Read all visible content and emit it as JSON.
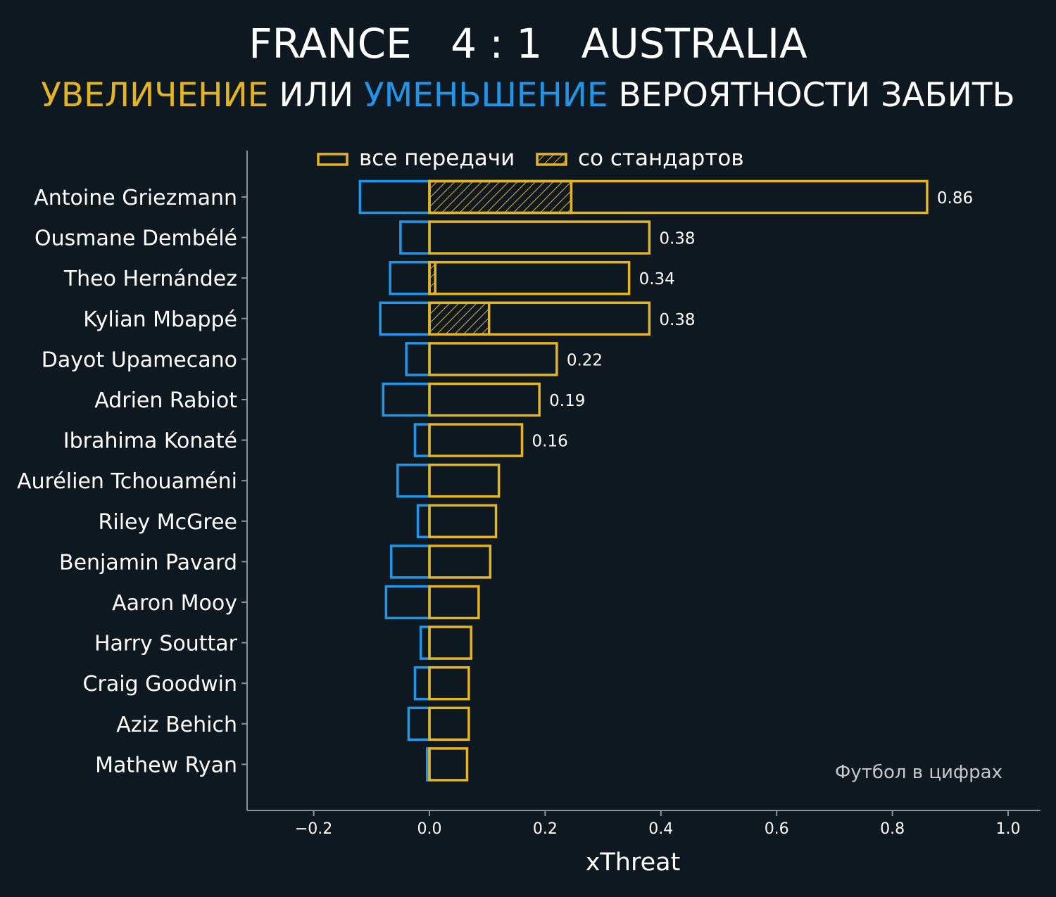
{
  "header": {
    "home_team": "FRANCE",
    "score": "4 : 1",
    "away_team": "AUSTRALIA",
    "subtitle": {
      "increase": "УВЕЛИЧЕНИЕ",
      "or": "ИЛИ",
      "decrease": "УМЕНЬШЕНИЕ",
      "rest": "ВЕРОЯТНОСТИ ЗАБИТЬ"
    }
  },
  "colors": {
    "background": "#0e1821",
    "increase": "#e3b423",
    "decrease": "#2196e8",
    "axis": "#8a9399",
    "text": "#ffffff"
  },
  "watermark": "Футбол в цифрах",
  "chart_data": {
    "type": "bar",
    "orientation": "horizontal",
    "xlabel": "xThreat",
    "ylabel": "",
    "xlim": [
      -0.32,
      1.06
    ],
    "x_ticks": [
      -0.2,
      0.0,
      0.2,
      0.4,
      0.6,
      0.8,
      1.0
    ],
    "x_tick_labels": [
      "−0.2",
      "0.0",
      "0.2",
      "0.4",
      "0.6",
      "0.8",
      "1.0"
    ],
    "grid": false,
    "legend": {
      "placement": "top",
      "entries": [
        "все передачи",
        "со стандартов"
      ]
    },
    "categories": [
      "Antoine Griezmann",
      "Ousmane Dembélé",
      "Theo Hernández",
      "Kylian Mbappé",
      "Dayot Upamecano",
      "Adrien Rabiot",
      "Ibrahima Konaté",
      "Aurélien Tchouaméni",
      "Riley McGree",
      "Benjamin Pavard",
      "Aaron Mooy",
      "Harry Souttar",
      "Craig Goodwin",
      "Aziz Behich",
      "Mathew Ryan"
    ],
    "series": [
      {
        "name": "все передачи",
        "values": [
          0.86,
          0.38,
          0.345,
          0.38,
          0.22,
          0.19,
          0.16,
          0.12,
          0.115,
          0.105,
          0.085,
          0.072,
          0.068,
          0.068,
          0.065
        ]
      },
      {
        "name": "со стандартов",
        "values": [
          0.245,
          0.0,
          0.01,
          0.103,
          0,
          0,
          0,
          0,
          0,
          0,
          0,
          0,
          0,
          0,
          0
        ]
      },
      {
        "name": "negative",
        "values": [
          -0.12,
          -0.05,
          -0.068,
          -0.085,
          -0.04,
          -0.08,
          -0.025,
          -0.055,
          -0.02,
          -0.066,
          -0.075,
          -0.015,
          -0.025,
          -0.036,
          -0.004
        ]
      }
    ],
    "value_labels": [
      "0.86",
      "0.38",
      "0.34",
      "0.38",
      "0.22",
      "0.19",
      "0.16",
      "",
      "",
      "",
      "",
      "",
      "",
      "",
      ""
    ]
  }
}
